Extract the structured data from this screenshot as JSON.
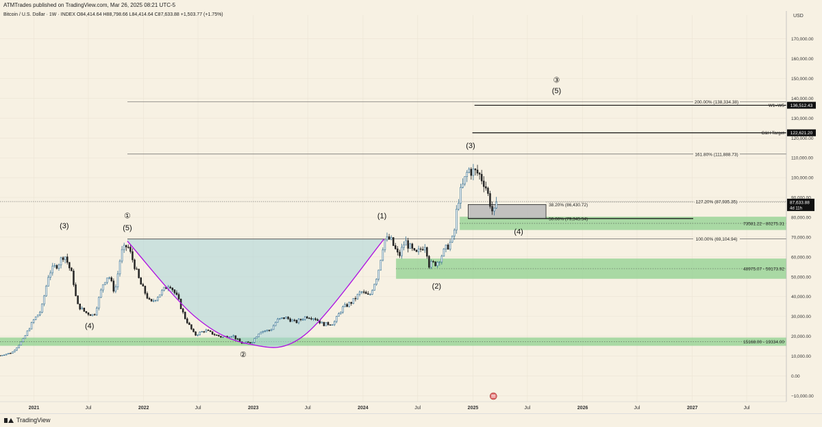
{
  "header": {
    "publisher": "ATMTrades published on TradingView.com, Mar 26, 2025 08:21 UTC-5",
    "ohlc": "Bitcoin / U.S. Dollar · 1W · INDEX  O84,414.64  H88,798.66  L84,414.64  C87,633.88  +1,503.77 (+1.75%)"
  },
  "footer": {
    "brand": "TradingView"
  },
  "chart_data": {
    "type": "candlestick",
    "currency": "USD",
    "yaxis": {
      "ticks": [
        -10000,
        0,
        10000,
        20000,
        30000,
        40000,
        50000,
        60000,
        70000,
        80000,
        90000,
        100000,
        110000,
        120000,
        130000,
        140000,
        150000,
        160000,
        170000
      ],
      "tick_labels": [
        "−10,000.00",
        "0.00",
        "10,000.00",
        "20,000.00",
        "30,000.00",
        "40,000.00",
        "50,000.00",
        "60,000.00",
        "70,000.00",
        "80,000.00",
        "90,000.00",
        "100,000.00",
        "110,000.00",
        "120,000.00",
        "130,000.00",
        "140,000.00",
        "150,000.00",
        "160,000.00",
        "170,000.00"
      ],
      "ylim": [
        -13000,
        182000
      ]
    },
    "xaxis": {
      "range": [
        "2020-09-10",
        "2027-11-10"
      ],
      "ticks": [
        {
          "date": "2021-01-01",
          "label": "2021",
          "bold": true
        },
        {
          "date": "2021-07-01",
          "label": "Jul",
          "bold": false
        },
        {
          "date": "2022-01-01",
          "label": "2022",
          "bold": true
        },
        {
          "date": "2022-07-01",
          "label": "Jul",
          "bold": false
        },
        {
          "date": "2023-01-01",
          "label": "2023",
          "bold": true
        },
        {
          "date": "2023-07-01",
          "label": "Jul",
          "bold": false
        },
        {
          "date": "2024-01-01",
          "label": "2024",
          "bold": true
        },
        {
          "date": "2024-07-01",
          "label": "Jul",
          "bold": false
        },
        {
          "date": "2025-01-01",
          "label": "2025",
          "bold": true
        },
        {
          "date": "2025-07-01",
          "label": "Jul",
          "bold": false
        },
        {
          "date": "2026-01-01",
          "label": "2026",
          "bold": true
        },
        {
          "date": "2026-07-01",
          "label": "Jul",
          "bold": false
        },
        {
          "date": "2027-01-01",
          "label": "2027",
          "bold": true
        },
        {
          "date": "2027-07-01",
          "label": "Jul",
          "bold": false
        }
      ]
    },
    "price_path": [
      [
        "2020-09-10",
        10300
      ],
      [
        "2020-10-20",
        11800
      ],
      [
        "2020-11-25",
        18000
      ],
      [
        "2020-12-30",
        28000
      ],
      [
        "2021-01-25",
        33000
      ],
      [
        "2021-02-20",
        52000
      ],
      [
        "2021-03-25",
        57000
      ],
      [
        "2021-04-12",
        61500
      ],
      [
        "2021-05-10",
        50000
      ],
      [
        "2021-05-24",
        36000
      ],
      [
        "2021-06-21",
        32000
      ],
      [
        "2021-07-20",
        30500
      ],
      [
        "2021-08-20",
        47000
      ],
      [
        "2021-09-06",
        51000
      ],
      [
        "2021-09-27",
        42000
      ],
      [
        "2021-10-18",
        62000
      ],
      [
        "2021-11-08",
        66000
      ],
      [
        "2021-11-29",
        57000
      ],
      [
        "2021-12-20",
        47000
      ],
      [
        "2022-01-24",
        36500
      ],
      [
        "2022-02-28",
        42000
      ],
      [
        "2022-03-28",
        46500
      ],
      [
        "2022-04-25",
        39000
      ],
      [
        "2022-05-16",
        30000
      ],
      [
        "2022-06-20",
        20500
      ],
      [
        "2022-07-25",
        23000
      ],
      [
        "2022-08-22",
        21000
      ],
      [
        "2022-09-19",
        19500
      ],
      [
        "2022-10-24",
        20500
      ],
      [
        "2022-11-21",
        16500
      ],
      [
        "2022-12-26",
        16800
      ],
      [
        "2023-01-23",
        22500
      ],
      [
        "2023-02-27",
        23000
      ],
      [
        "2023-03-20",
        28000
      ],
      [
        "2023-04-17",
        29500
      ],
      [
        "2023-05-22",
        27000
      ],
      [
        "2023-06-26",
        30000
      ],
      [
        "2023-07-24",
        29200
      ],
      [
        "2023-08-21",
        26000
      ],
      [
        "2023-09-25",
        26500
      ],
      [
        "2023-10-23",
        34000
      ],
      [
        "2023-11-27",
        37500
      ],
      [
        "2023-12-25",
        42500
      ],
      [
        "2024-01-22",
        40000
      ],
      [
        "2024-02-19",
        51500
      ],
      [
        "2024-03-11",
        68500
      ],
      [
        "2024-04-01",
        69000
      ],
      [
        "2024-04-29",
        60000
      ],
      [
        "2024-05-20",
        68000
      ],
      [
        "2024-06-24",
        61000
      ],
      [
        "2024-07-29",
        67000
      ],
      [
        "2024-08-05",
        56000
      ],
      [
        "2024-09-02",
        57000
      ],
      [
        "2024-09-30",
        63500
      ],
      [
        "2024-10-28",
        69500
      ],
      [
        "2024-11-11",
        88000
      ],
      [
        "2024-12-16",
        104000
      ],
      [
        "2025-01-20",
        102000
      ],
      [
        "2025-02-10",
        97000
      ],
      [
        "2025-03-03",
        85000
      ],
      [
        "2025-03-10",
        81000
      ],
      [
        "2025-03-24",
        87633
      ]
    ],
    "cup_curve": [
      [
        "2021-11-08",
        68000
      ],
      [
        "2022-06-20",
        30000
      ],
      [
        "2022-12-20",
        16000
      ],
      [
        "2023-06-20",
        20500
      ],
      [
        "2024-03-11",
        69000
      ]
    ],
    "cup_fill": {
      "from": "2021-11-08",
      "to": "2024-03-11",
      "top": 69000
    },
    "horizontal_lines": [
      {
        "from": "2021-11-08",
        "price": 138334,
        "label": "200.00% (138,334.38)"
      },
      {
        "from": "2021-11-08",
        "price": 111889,
        "label": "161.80% (111,888.73)"
      },
      {
        "from": "2020-09-10",
        "price": 87935,
        "label": "127.20% (87,935.35)",
        "dashed": true
      },
      {
        "from": "2021-11-08",
        "price": 69105,
        "label": "100.00% (69,104.94)"
      }
    ],
    "zones": [
      {
        "from": "2024-11-18",
        "to": "2027-11-10",
        "low": 73581,
        "high": 80275,
        "label": "73581.22 - 80275.31"
      },
      {
        "from": "2024-04-20",
        "to": "2027-11-10",
        "low": 48975,
        "high": 59174,
        "label": "48975.07 - 59173.92"
      },
      {
        "from": "2020-09-10",
        "to": "2027-11-10",
        "low": 15168,
        "high": 19334,
        "label": "15168.00 - 19334.00"
      }
    ],
    "retracement_box": {
      "from": "2024-12-16",
      "to": "2025-09-01",
      "low": 79346,
      "high": 86431,
      "labels": [
        "38.20% (86,430.72)",
        "50.00% (79,345.54)"
      ]
    },
    "targets": [
      {
        "from": "2025-01-06",
        "price": 136512,
        "text": "W1=W5",
        "tag": "136,512.43"
      },
      {
        "from": "2024-12-30",
        "price": 122621,
        "text": "C&H Target",
        "tag": "122,621.20"
      }
    ],
    "price_tag": {
      "price": 87634,
      "value": "87,633.88",
      "sub": "4d 11h"
    },
    "wave_labels": [
      {
        "text": "(3)",
        "date": "2021-04-12",
        "price": 74500
      },
      {
        "text": "(4)",
        "date": "2021-07-05",
        "price": 24000
      },
      {
        "text": "①",
        "date": "2021-11-08",
        "price": 79500
      },
      {
        "text": "(5)",
        "date": "2021-11-08",
        "price": 73500
      },
      {
        "text": "②",
        "date": "2022-11-28",
        "price": 9500
      },
      {
        "text": "(1)",
        "date": "2024-03-04",
        "price": 79500
      },
      {
        "text": "(2)",
        "date": "2024-09-02",
        "price": 44000
      },
      {
        "text": "(3)",
        "date": "2024-12-24",
        "price": 115000
      },
      {
        "text": "(4)",
        "date": "2025-06-02",
        "price": 71500
      },
      {
        "text": "③",
        "date": "2025-10-06",
        "price": 148000
      },
      {
        "text": "(5)",
        "date": "2025-10-06",
        "price": 142500
      }
    ],
    "bottom_marker": {
      "date": "2025-03-10",
      "icon": "flag-icon"
    }
  }
}
